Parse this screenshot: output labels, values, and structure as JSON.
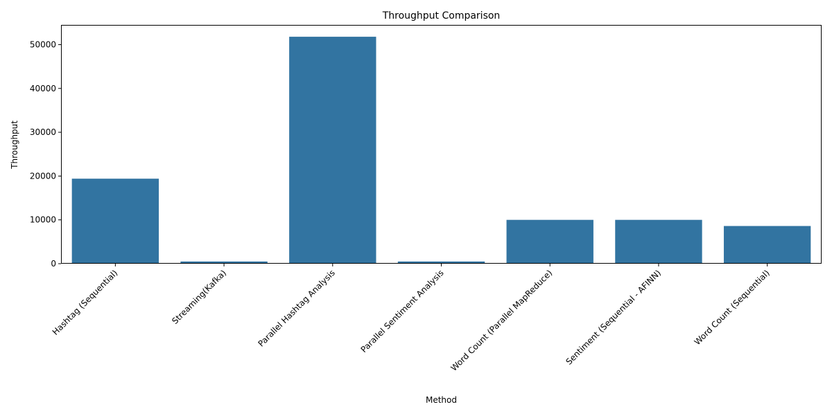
{
  "chart_data": {
    "type": "bar",
    "title": "Throughput Comparison",
    "xlabel": "Method",
    "ylabel": "Throughput",
    "categories": [
      "Hashtag (Sequential)",
      "Streaming(Kafka)",
      "Parallel Hashtag Analysis",
      "Parallel Sentiment Analysis",
      "Word Count (Parallel MapReduce)",
      "Sentiment (Sequential - AFINN)",
      "Word Count (Sequential)"
    ],
    "values": [
      19400,
      500,
      51800,
      500,
      10000,
      10000,
      8600
    ],
    "ylim": [
      0,
      54500
    ],
    "yticks": [
      0,
      10000,
      20000,
      30000,
      40000,
      50000
    ],
    "grid": false,
    "bar_color": "#3274a1"
  }
}
